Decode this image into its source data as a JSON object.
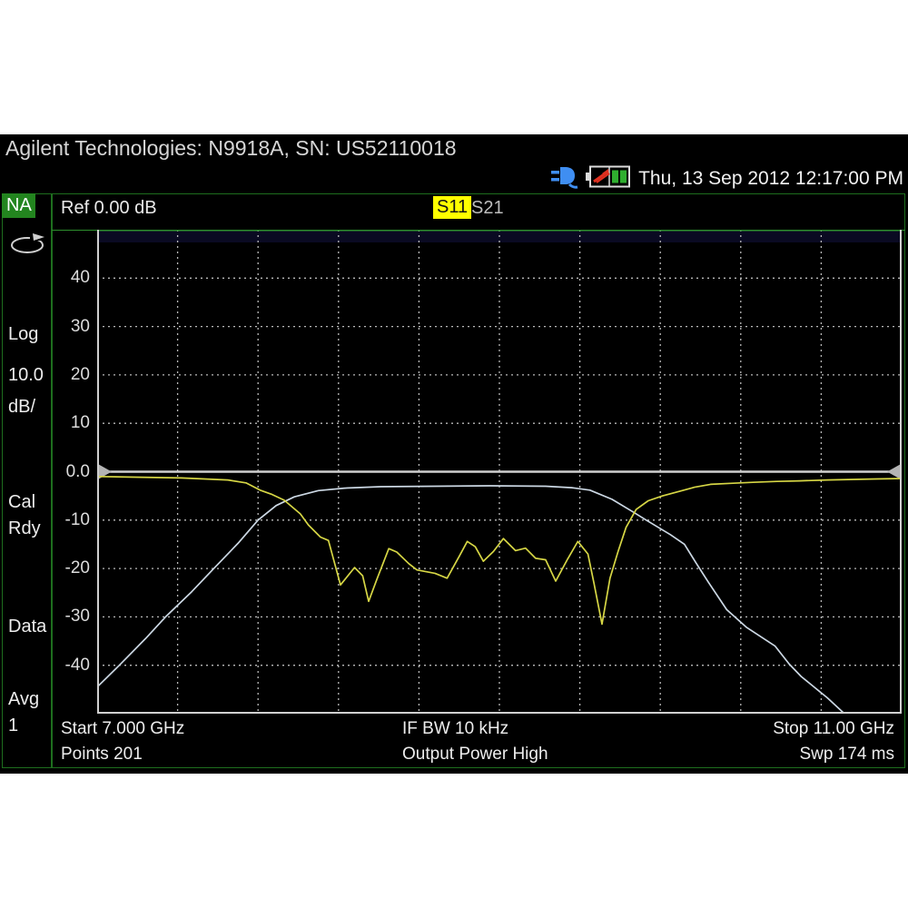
{
  "titlebar": {
    "title": "Agilent Technologies: N9918A, SN: US52110018"
  },
  "statusbar": {
    "datetime": "Thu, 13 Sep 2012 12:17:00 PM",
    "icons": [
      "power-plug-icon",
      "battery-charging-icon"
    ]
  },
  "sidebar": {
    "mode_tab": "NA",
    "scale_type": "Log",
    "scale_per_div": "10.0",
    "scale_unit": "dB/",
    "cal_line1": "Cal",
    "cal_line2": "Rdy",
    "data_indicator": "Data",
    "avg_label": "Avg",
    "avg_count": "1"
  },
  "header": {
    "ref_level": "Ref 0.00 dB",
    "trace_tabs": [
      {
        "label": "S11",
        "active": true
      },
      {
        "label": "S21",
        "active": false
      }
    ]
  },
  "footer": {
    "start": "Start 7.000 GHz",
    "points": "Points 201",
    "if_bw": "IF BW 10 kHz",
    "output_power": "Output Power High",
    "stop": "Stop 11.00 GHz",
    "sweep": "Swp 174 ms"
  },
  "colors": {
    "panel_border_green": "#1e6e1e",
    "plot_top_green": "#2d8f2d",
    "mode_tab_green": "#23851f",
    "highlight_yellow": "#ffff00",
    "s11_trace": "#d6d645",
    "s21_trace": "#ccd8e4",
    "grid": "#b9b9b9",
    "ref_line": "#d0d0d0",
    "marker_gray": "#b4b4b4"
  },
  "chart_data": {
    "type": "line",
    "title": "",
    "xlabel": "",
    "ylabel": "",
    "x_range": [
      7.0,
      11.0
    ],
    "ylim": [
      -50,
      50
    ],
    "db_per_div": 10,
    "x_divisions": 10,
    "grid": "dotted",
    "reference_level_db": 0.0,
    "y_ticks": [
      "40",
      "30",
      "20",
      "10",
      "0.0",
      "-10",
      "-20",
      "-30",
      "-40"
    ],
    "series": [
      {
        "name": "S11",
        "color": "#d6d645",
        "x": [
          7.0,
          7.42,
          7.65,
          7.74,
          7.81,
          7.87,
          7.93,
          8.01,
          8.05,
          8.11,
          8.15,
          8.21,
          8.28,
          8.32,
          8.35,
          8.39,
          8.45,
          8.49,
          8.55,
          8.59,
          8.68,
          8.74,
          8.8,
          8.84,
          8.88,
          8.92,
          8.97,
          9.02,
          9.08,
          9.13,
          9.18,
          9.23,
          9.28,
          9.34,
          9.39,
          9.44,
          9.47,
          9.51,
          9.55,
          9.59,
          9.63,
          9.68,
          9.74,
          9.81,
          9.89,
          9.97,
          10.05,
          10.15,
          10.26,
          10.38,
          10.49,
          10.63,
          10.76,
          10.87,
          11.0
        ],
        "y": [
          -1.0,
          -1.3,
          -1.7,
          -2.3,
          -3.8,
          -4.7,
          -5.9,
          -8.7,
          -11.0,
          -13.5,
          -14.2,
          -23.4,
          -19.8,
          -21.5,
          -26.8,
          -22.3,
          -15.9,
          -16.6,
          -19.0,
          -20.3,
          -21.0,
          -22.0,
          -17.5,
          -14.4,
          -15.5,
          -18.5,
          -16.5,
          -13.8,
          -16.3,
          -15.8,
          -17.9,
          -18.2,
          -22.6,
          -18.0,
          -14.4,
          -17.0,
          -23.0,
          -31.5,
          -22.0,
          -16.5,
          -11.5,
          -7.8,
          -6.0,
          -5.0,
          -4.1,
          -3.2,
          -2.6,
          -2.4,
          -2.2,
          -2.0,
          -1.9,
          -1.7,
          -1.6,
          -1.5,
          -1.4
        ]
      },
      {
        "name": "S21",
        "color": "#ccd8e4",
        "x": [
          7.0,
          7.11,
          7.24,
          7.34,
          7.47,
          7.58,
          7.7,
          7.8,
          7.89,
          7.98,
          8.1,
          8.23,
          8.41,
          8.68,
          8.95,
          9.23,
          9.36,
          9.45,
          9.56,
          9.66,
          9.73,
          9.85,
          9.92,
          9.98,
          10.04,
          10.13,
          10.23,
          10.37,
          10.44,
          10.5,
          10.63,
          10.71
        ],
        "y": [
          -44.5,
          -40.0,
          -34.5,
          -30.0,
          -24.8,
          -20.0,
          -14.8,
          -10.0,
          -7.0,
          -5.2,
          -3.9,
          -3.4,
          -3.1,
          -3.0,
          -2.9,
          -3.0,
          -3.3,
          -3.8,
          -5.7,
          -8.2,
          -10.0,
          -13.0,
          -15.0,
          -19.0,
          -22.9,
          -28.5,
          -32.2,
          -36.0,
          -39.7,
          -42.3,
          -46.7,
          -49.8
        ]
      }
    ]
  }
}
